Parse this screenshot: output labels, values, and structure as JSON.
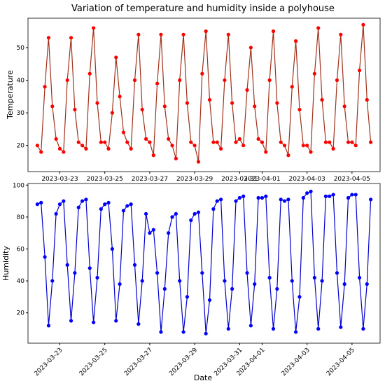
{
  "chart_data": [
    {
      "type": "line",
      "title": "Variation of temperature and humidity inside a polyhouse",
      "ylabel": "Temperature",
      "x": [
        "2023-03-22 00:00",
        "2023-03-22 04:00",
        "2023-03-22 08:00",
        "2023-03-22 12:00",
        "2023-03-22 16:00",
        "2023-03-22 20:00",
        "2023-03-23 00:00",
        "2023-03-23 04:00",
        "2023-03-23 08:00",
        "2023-03-23 12:00",
        "2023-03-23 16:00",
        "2023-03-23 20:00",
        "2023-03-24 00:00",
        "2023-03-24 04:00",
        "2023-03-24 08:00",
        "2023-03-24 12:00",
        "2023-03-24 16:00",
        "2023-03-24 20:00",
        "2023-03-25 00:00",
        "2023-03-25 04:00",
        "2023-03-25 08:00",
        "2023-03-25 12:00",
        "2023-03-25 16:00",
        "2023-03-25 20:00",
        "2023-03-26 00:00",
        "2023-03-26 04:00",
        "2023-03-26 08:00",
        "2023-03-26 12:00",
        "2023-03-26 16:00",
        "2023-03-26 20:00",
        "2023-03-27 00:00",
        "2023-03-27 04:00",
        "2023-03-27 08:00",
        "2023-03-27 12:00",
        "2023-03-27 16:00",
        "2023-03-27 20:00",
        "2023-03-28 00:00",
        "2023-03-28 04:00",
        "2023-03-28 08:00",
        "2023-03-28 12:00",
        "2023-03-28 16:00",
        "2023-03-28 20:00",
        "2023-03-29 00:00",
        "2023-03-29 04:00",
        "2023-03-29 08:00",
        "2023-03-29 12:00",
        "2023-03-29 16:00",
        "2023-03-29 20:00",
        "2023-03-30 00:00",
        "2023-03-30 04:00",
        "2023-03-30 08:00",
        "2023-03-30 12:00",
        "2023-03-30 16:00",
        "2023-03-30 20:00",
        "2023-03-31 00:00",
        "2023-03-31 04:00",
        "2023-03-31 08:00",
        "2023-03-31 12:00",
        "2023-03-31 16:00",
        "2023-03-31 20:00",
        "2023-04-01 00:00",
        "2023-04-01 04:00",
        "2023-04-01 08:00",
        "2023-04-01 12:00",
        "2023-04-01 16:00",
        "2023-04-01 20:00",
        "2023-04-02 00:00",
        "2023-04-02 04:00",
        "2023-04-02 08:00",
        "2023-04-02 12:00",
        "2023-04-02 16:00",
        "2023-04-02 20:00",
        "2023-04-03 00:00",
        "2023-04-03 04:00",
        "2023-04-03 08:00",
        "2023-04-03 12:00",
        "2023-04-03 16:00",
        "2023-04-03 20:00",
        "2023-04-04 00:00",
        "2023-04-04 04:00",
        "2023-04-04 08:00",
        "2023-04-04 12:00",
        "2023-04-04 16:00",
        "2023-04-04 20:00",
        "2023-04-05 00:00",
        "2023-04-05 04:00",
        "2023-04-05 08:00",
        "2023-04-05 12:00",
        "2023-04-05 16:00",
        "2023-04-05 20:00"
      ],
      "series": [
        {
          "color": "#a0301a",
          "marker_color": "#ff0000",
          "values": [
            20,
            18,
            38,
            53,
            32,
            22,
            19,
            18,
            40,
            53,
            31,
            21,
            20,
            19,
            42,
            56,
            33,
            21,
            21,
            19,
            30,
            47,
            35,
            24,
            21,
            19,
            40,
            54,
            31,
            22,
            21,
            17,
            39,
            54,
            32,
            22,
            20,
            16,
            40,
            54,
            33,
            21,
            20,
            15,
            42,
            55,
            34,
            21,
            21,
            19,
            40,
            54,
            33,
            21,
            22,
            20,
            37,
            50,
            32,
            22,
            21,
            18,
            40,
            55,
            33,
            21,
            20,
            17,
            38,
            52,
            31,
            20,
            20,
            18,
            42,
            56,
            34,
            21,
            21,
            19,
            40,
            54,
            32,
            21,
            21,
            20,
            43,
            57,
            34,
            21
          ]
        }
      ],
      "xlim": [
        "2023-03-21 14:00",
        "2023-04-06 06:00"
      ],
      "xticks": [
        "2023-03-23",
        "2023-03-25",
        "2023-03-27",
        "2023-03-29",
        "2023-03-31",
        "2023-04-01",
        "2023-04-03",
        "2023-04-05"
      ],
      "ylim": [
        12,
        59
      ],
      "yticks": [
        20,
        30,
        40,
        50
      ]
    },
    {
      "type": "line",
      "xlabel": "Date",
      "ylabel": "Humidity",
      "x": [
        "2023-03-22 00:00",
        "2023-03-22 04:00",
        "2023-03-22 08:00",
        "2023-03-22 12:00",
        "2023-03-22 16:00",
        "2023-03-22 20:00",
        "2023-03-23 00:00",
        "2023-03-23 04:00",
        "2023-03-23 08:00",
        "2023-03-23 12:00",
        "2023-03-23 16:00",
        "2023-03-23 20:00",
        "2023-03-24 00:00",
        "2023-03-24 04:00",
        "2023-03-24 08:00",
        "2023-03-24 12:00",
        "2023-03-24 16:00",
        "2023-03-24 20:00",
        "2023-03-25 00:00",
        "2023-03-25 04:00",
        "2023-03-25 08:00",
        "2023-03-25 12:00",
        "2023-03-25 16:00",
        "2023-03-25 20:00",
        "2023-03-26 00:00",
        "2023-03-26 04:00",
        "2023-03-26 08:00",
        "2023-03-26 12:00",
        "2023-03-26 16:00",
        "2023-03-26 20:00",
        "2023-03-27 00:00",
        "2023-03-27 04:00",
        "2023-03-27 08:00",
        "2023-03-27 12:00",
        "2023-03-27 16:00",
        "2023-03-27 20:00",
        "2023-03-28 00:00",
        "2023-03-28 04:00",
        "2023-03-28 08:00",
        "2023-03-28 12:00",
        "2023-03-28 16:00",
        "2023-03-28 20:00",
        "2023-03-29 00:00",
        "2023-03-29 04:00",
        "2023-03-29 08:00",
        "2023-03-29 12:00",
        "2023-03-29 16:00",
        "2023-03-29 20:00",
        "2023-03-30 00:00",
        "2023-03-30 04:00",
        "2023-03-30 08:00",
        "2023-03-30 12:00",
        "2023-03-30 16:00",
        "2023-03-30 20:00",
        "2023-03-31 00:00",
        "2023-03-31 04:00",
        "2023-03-31 08:00",
        "2023-03-31 12:00",
        "2023-03-31 16:00",
        "2023-03-31 20:00",
        "2023-04-01 00:00",
        "2023-04-01 04:00",
        "2023-04-01 08:00",
        "2023-04-01 12:00",
        "2023-04-01 16:00",
        "2023-04-01 20:00",
        "2023-04-02 00:00",
        "2023-04-02 04:00",
        "2023-04-02 08:00",
        "2023-04-02 12:00",
        "2023-04-02 16:00",
        "2023-04-02 20:00",
        "2023-04-03 00:00",
        "2023-04-03 04:00",
        "2023-04-03 08:00",
        "2023-04-03 12:00",
        "2023-04-03 16:00",
        "2023-04-03 20:00",
        "2023-04-04 00:00",
        "2023-04-04 04:00",
        "2023-04-04 08:00",
        "2023-04-04 12:00",
        "2023-04-04 16:00",
        "2023-04-04 20:00",
        "2023-04-05 00:00",
        "2023-04-05 04:00",
        "2023-04-05 08:00",
        "2023-04-05 12:00",
        "2023-04-05 16:00",
        "2023-04-05 20:00"
      ],
      "series": [
        {
          "color": "#0000cc",
          "marker_color": "#0000ff",
          "values": [
            88,
            89,
            55,
            12,
            40,
            82,
            88,
            90,
            50,
            15,
            45,
            86,
            90,
            91,
            48,
            14,
            42,
            85,
            88,
            89,
            60,
            15,
            38,
            84,
            87,
            88,
            50,
            13,
            40,
            82,
            70,
            72,
            45,
            8,
            35,
            70,
            80,
            82,
            40,
            8,
            30,
            78,
            82,
            83,
            45,
            7,
            28,
            85,
            90,
            91,
            40,
            10,
            35,
            90,
            92,
            93,
            45,
            12,
            38,
            92,
            92,
            93,
            42,
            10,
            35,
            91,
            90,
            91,
            40,
            8,
            30,
            92,
            95,
            96,
            42,
            10,
            40,
            93,
            93,
            94,
            45,
            11,
            38,
            92,
            94,
            94,
            42,
            10,
            38,
            91
          ]
        }
      ],
      "xlim": [
        "2023-03-21 14:00",
        "2023-04-06 06:00"
      ],
      "xticks": [
        "2023-03-23",
        "2023-03-25",
        "2023-03-27",
        "2023-03-29",
        "2023-03-31",
        "2023-04-01",
        "2023-04-03",
        "2023-04-05"
      ],
      "ylim": [
        1,
        101
      ],
      "yticks": [
        20,
        40,
        60,
        80,
        100
      ]
    }
  ]
}
